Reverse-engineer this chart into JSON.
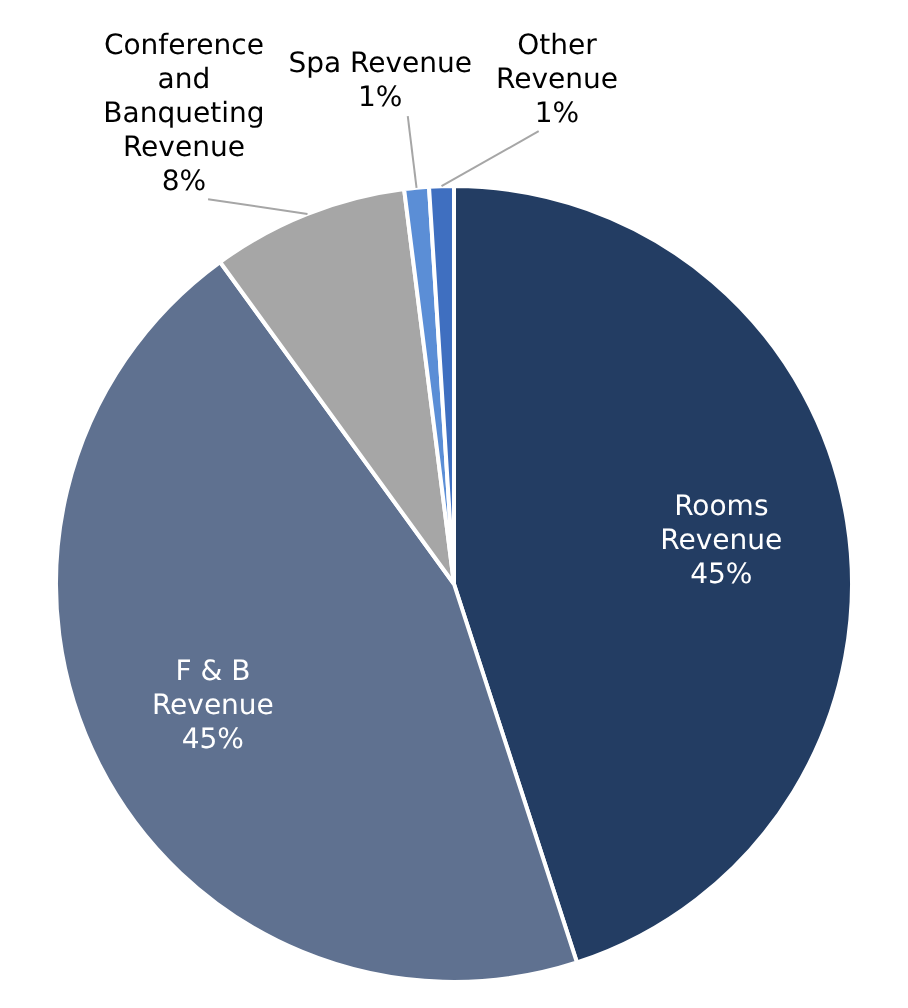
{
  "chart_data": {
    "type": "pie",
    "categories": [
      "Rooms Revenue",
      "F & B Revenue",
      "Conference and Banqueting Revenue",
      "Spa Revenue",
      "Other Revenue"
    ],
    "values": [
      45,
      45,
      8,
      1,
      1
    ],
    "colors": [
      "#233d63",
      "#5f7190",
      "#a6a6a6",
      "#5b8ed6",
      "#3f6fc0"
    ],
    "value_labels": [
      "45%",
      "45%",
      "8%",
      "1%",
      "1%"
    ],
    "legend": false
  }
}
